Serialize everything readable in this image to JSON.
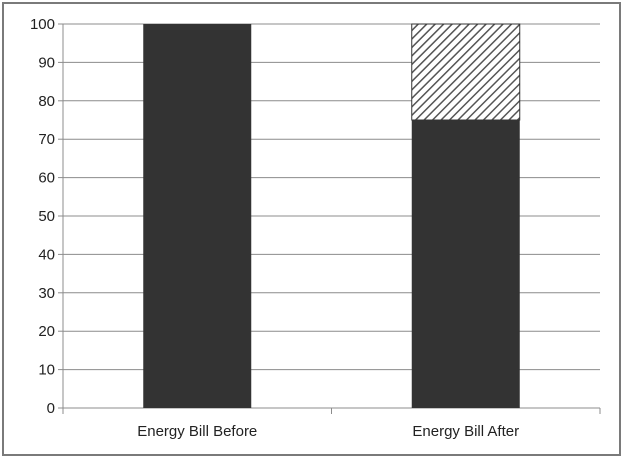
{
  "chart_data": {
    "type": "bar",
    "stacked": true,
    "categories": [
      "Energy Bill Before",
      "Energy Bill After"
    ],
    "series": [
      {
        "values": [
          100,
          75
        ],
        "color": "#333333",
        "pattern": "solid"
      },
      {
        "values": [
          0,
          25
        ],
        "color": "#555555",
        "pattern": "diagonal-hatch"
      }
    ],
    "title": "",
    "xlabel": "",
    "ylabel": "",
    "ylim": [
      0,
      100
    ],
    "yticks": [
      0,
      10,
      20,
      30,
      40,
      50,
      60,
      70,
      80,
      90,
      100
    ],
    "grid": true,
    "legend": "none"
  }
}
